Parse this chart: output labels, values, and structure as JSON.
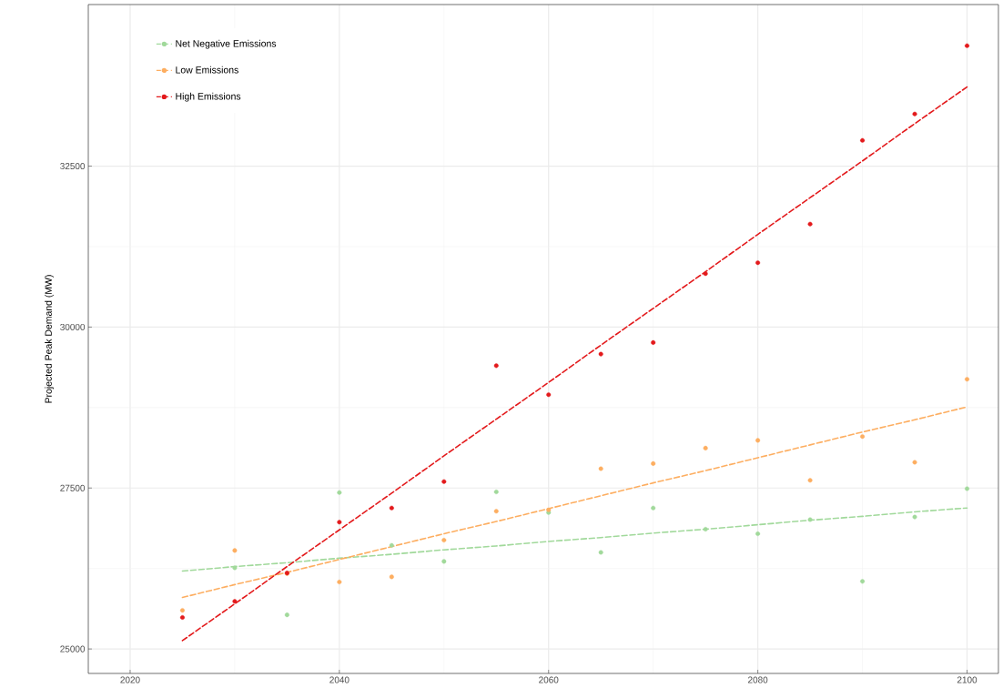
{
  "chart_data": {
    "type": "scatter",
    "ylabel": "Projected Peak Demand (MW)",
    "xlim": [
      2016,
      2103
    ],
    "ylim": [
      24620,
      35010
    ],
    "xticks": [
      2020,
      2040,
      2060,
      2080,
      2100
    ],
    "yticks": [
      25000,
      27500,
      30000,
      32500
    ],
    "grid": true,
    "legend": "top left",
    "marker": "circle",
    "x": [
      2025,
      2030,
      2035,
      2040,
      2045,
      2050,
      2055,
      2060,
      2065,
      2070,
      2075,
      2080,
      2085,
      2090,
      2095,
      2100
    ],
    "series": [
      {
        "name": "Net Negative Emissions",
        "color": "#a1d99b",
        "values": [
          null,
          26260,
          25530,
          27430,
          26610,
          26360,
          27440,
          27120,
          26500,
          27190,
          26860,
          26790,
          27010,
          26050,
          27050,
          27490
        ]
      },
      {
        "name": "Low Emissions",
        "color": "#fdae61",
        "values": [
          25600,
          26530,
          26170,
          26040,
          26120,
          26690,
          27140,
          27160,
          27800,
          27880,
          28120,
          28240,
          27620,
          28300,
          27900,
          29190
        ]
      },
      {
        "name": "High Emissions",
        "color": "#e31a1c",
        "values": [
          25490,
          25740,
          26180,
          26970,
          27190,
          27600,
          29400,
          28950,
          29580,
          29760,
          30830,
          31000,
          31600,
          32900,
          33310,
          34370
        ]
      },
      {
        "type": "line",
        "line_style": "dashed",
        "marker": "none",
        "color": "#a1d99b",
        "values": [
          26210,
          26280,
          26340,
          26410,
          26470,
          26540,
          26600,
          26670,
          26730,
          26800,
          26860,
          26930,
          27000,
          27060,
          27130,
          27190
        ]
      },
      {
        "type": "line",
        "line_style": "dashed",
        "marker": "none",
        "color": "#fdae61",
        "values": [
          25800,
          26000,
          26190,
          26390,
          26590,
          26790,
          26980,
          27180,
          27380,
          27580,
          27770,
          27970,
          28170,
          28370,
          28560,
          28760
        ]
      },
      {
        "type": "line",
        "line_style": "dashed",
        "marker": "none",
        "color": "#e31a1c",
        "values": [
          25130,
          25700,
          26280,
          26850,
          27420,
          28000,
          28570,
          29140,
          29720,
          30290,
          30860,
          31440,
          32010,
          32580,
          33160,
          33730
        ]
      }
    ]
  }
}
